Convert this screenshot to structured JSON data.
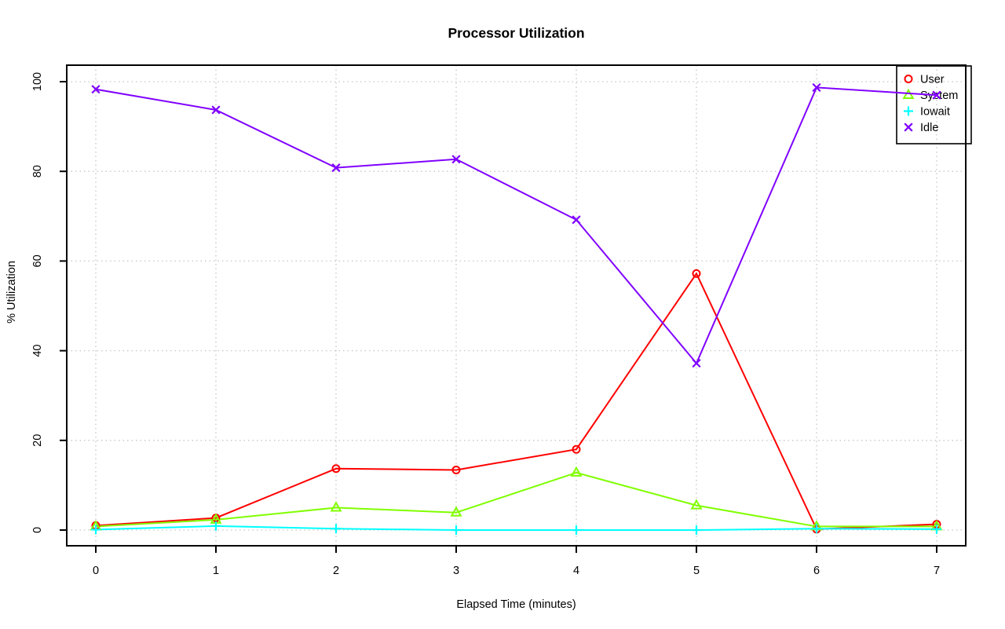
{
  "chart_data": {
    "type": "line",
    "title": "Processor Utilization",
    "xlabel": "Elapsed Time (minutes)",
    "ylabel": "% Utilization",
    "x": [
      0,
      1,
      2,
      3,
      4,
      5,
      6,
      7
    ],
    "x_ticks": [
      "0",
      "1",
      "2",
      "3",
      "4",
      "5",
      "6",
      "7"
    ],
    "y_ticks": [
      "0",
      "20",
      "40",
      "60",
      "80",
      "100"
    ],
    "y_tick_values": [
      0,
      20,
      40,
      60,
      80,
      100
    ],
    "xlim": [
      -0.25,
      7.25
    ],
    "ylim": [
      -2,
      104
    ],
    "grid": true,
    "grid_style": "dotted",
    "legend_position": "top-right",
    "series": [
      {
        "name": "User",
        "color": "#FF0000",
        "marker": "circle",
        "values": [
          1.0,
          2.7,
          13.7,
          13.4,
          18.0,
          57.2,
          0.2,
          1.3
        ]
      },
      {
        "name": "System",
        "color": "#80FF00",
        "marker": "triangle",
        "values": [
          0.8,
          2.3,
          5.0,
          3.9,
          12.8,
          5.5,
          0.8,
          0.8
        ]
      },
      {
        "name": "Iowait",
        "color": "#00FFFF",
        "marker": "plus",
        "values": [
          0.1,
          0.9,
          0.3,
          0.0,
          0.0,
          0.0,
          0.3,
          0.2
        ]
      },
      {
        "name": "Idle",
        "color": "#8000FF",
        "marker": "x",
        "values": [
          98.3,
          93.7,
          80.8,
          82.7,
          69.2,
          37.2,
          98.7,
          97.0
        ]
      }
    ],
    "colors": {
      "axis": "#000000",
      "gridline": "#c6c6c6",
      "background": "#ffffff"
    }
  }
}
